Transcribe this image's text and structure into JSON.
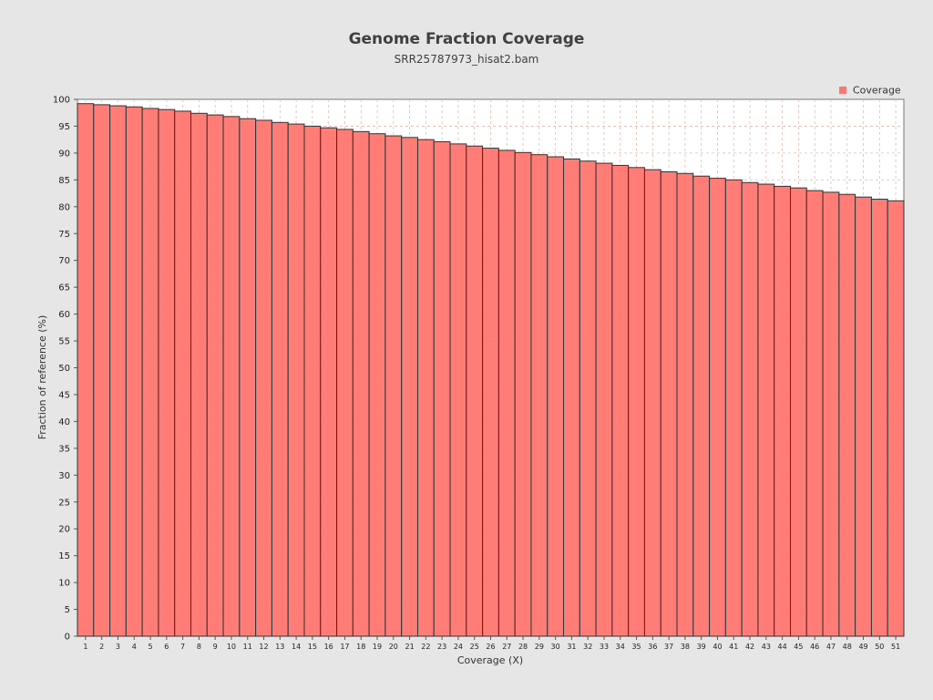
{
  "chart_data": {
    "type": "bar",
    "title": "Genome Fraction Coverage",
    "subtitle": "SRR25787973_hisat2.bam",
    "xlabel": "Coverage (X)",
    "ylabel": "Fraction of reference (%)",
    "ylim": [
      0,
      100
    ],
    "ytick_step": 5,
    "grid": true,
    "legend_position": "top-right",
    "colors": {
      "bar_fill": "#ff7570",
      "bar_stroke": "#333333",
      "grid": "#f0b8a0",
      "plot_background": "#ffffff",
      "page_background": "#e6e6e6"
    },
    "categories": [
      "1",
      "2",
      "3",
      "4",
      "5",
      "6",
      "7",
      "8",
      "9",
      "10",
      "11",
      "12",
      "13",
      "14",
      "15",
      "16",
      "17",
      "18",
      "19",
      "20",
      "21",
      "22",
      "23",
      "24",
      "25",
      "26",
      "27",
      "28",
      "29",
      "30",
      "31",
      "32",
      "33",
      "34",
      "35",
      "36",
      "37",
      "38",
      "39",
      "40",
      "41",
      "42",
      "43",
      "44",
      "45",
      "46",
      "47",
      "48",
      "49",
      "50",
      "51"
    ],
    "series": [
      {
        "name": "Coverage",
        "values": [
          99.2,
          99.0,
          98.8,
          98.6,
          98.3,
          98.1,
          97.8,
          97.4,
          97.1,
          96.8,
          96.4,
          96.1,
          95.7,
          95.4,
          95.0,
          94.7,
          94.4,
          94.0,
          93.6,
          93.2,
          92.9,
          92.5,
          92.1,
          91.7,
          91.3,
          90.9,
          90.5,
          90.1,
          89.7,
          89.3,
          88.9,
          88.5,
          88.1,
          87.7,
          87.3,
          86.9,
          86.5,
          86.2,
          85.7,
          85.3,
          85.0,
          84.5,
          84.2,
          83.8,
          83.5,
          83.0,
          82.7,
          82.3,
          81.8,
          81.4,
          81.1
        ]
      }
    ]
  }
}
